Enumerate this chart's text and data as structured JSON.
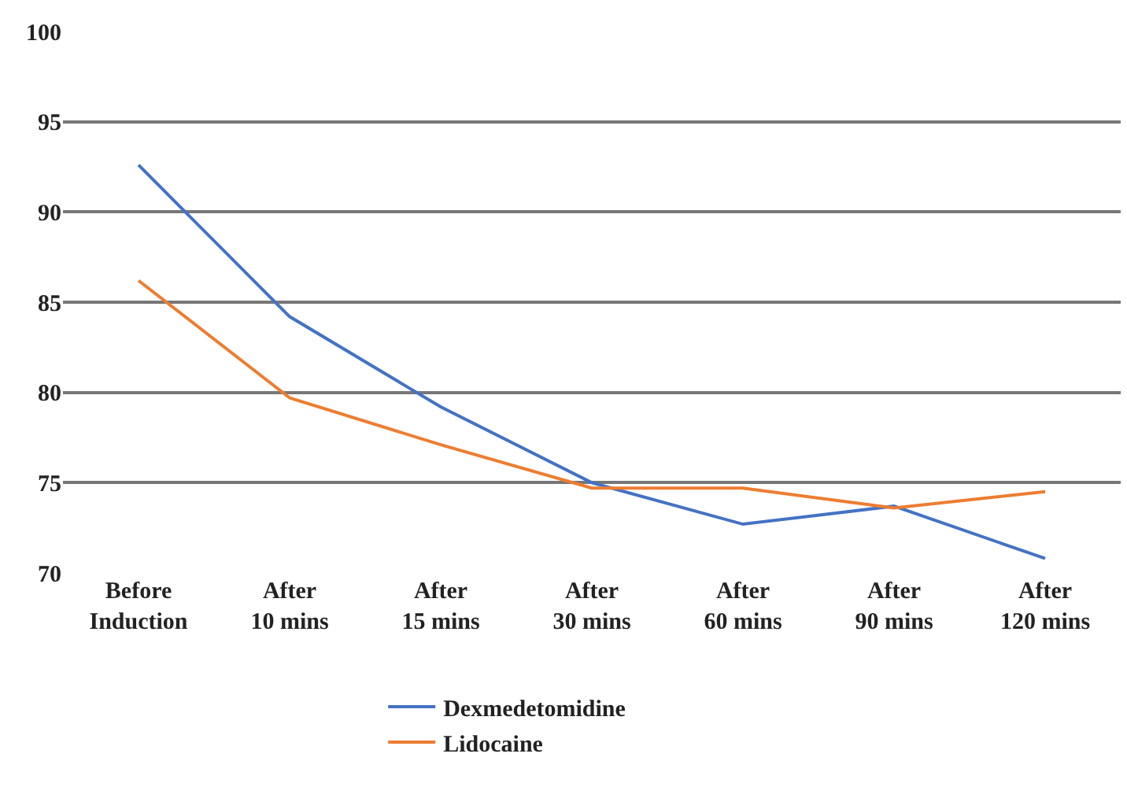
{
  "chart_data": {
    "type": "line",
    "categories": [
      "Before Induction",
      "After 10 mins",
      "After 15 mins",
      "After 30 mins",
      "After 60 mins",
      "After 90 mins",
      "After 120 mins"
    ],
    "series": [
      {
        "name": "Dexmedetomidine",
        "color": "#4472c4",
        "values": [
          92.6,
          84.2,
          79.2,
          75.0,
          72.7,
          73.7,
          70.8
        ]
      },
      {
        "name": "Lidocaine",
        "color": "#ed7d31",
        "values": [
          86.2,
          79.7,
          77.1,
          74.7,
          74.7,
          73.6,
          74.5
        ]
      }
    ],
    "ylim": [
      70,
      100
    ],
    "yticks": [
      70,
      75,
      80,
      85,
      90,
      95,
      100
    ],
    "grid": "y",
    "legend": "bottom",
    "marker": "none",
    "line_style": "solid"
  }
}
